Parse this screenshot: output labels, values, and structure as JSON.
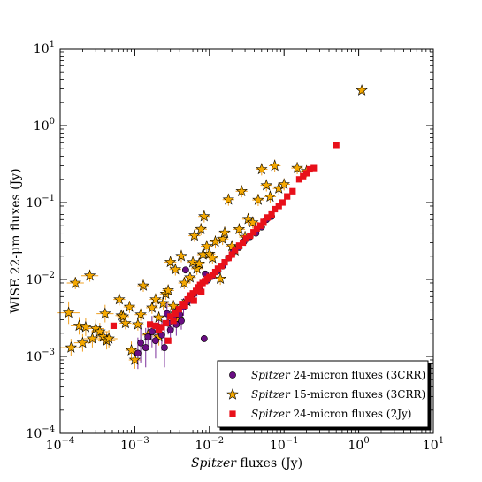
{
  "chart_data": {
    "type": "scatter",
    "xscale": "log",
    "yscale": "log",
    "xlim": [
      0.0001,
      10
    ],
    "ylim": [
      0.0001,
      10
    ],
    "xlabel": "Spitzer fluxes (Jy)",
    "xlabel_italic": "Spitzer",
    "xlabel_rest": " fluxes (Jy)",
    "ylabel": "WISE 22-μm fluxes (Jy)",
    "xticks": [
      {
        "value": 0.0001,
        "base": "10",
        "exp": "−4"
      },
      {
        "value": 0.001,
        "base": "10",
        "exp": "−3"
      },
      {
        "value": 0.01,
        "base": "10",
        "exp": "−2"
      },
      {
        "value": 0.1,
        "base": "10",
        "exp": "−1"
      },
      {
        "value": 1,
        "base": "10",
        "exp": "0"
      },
      {
        "value": 10,
        "base": "10",
        "exp": "1"
      }
    ],
    "yticks": [
      {
        "value": 0.0001,
        "base": "10",
        "exp": "−4"
      },
      {
        "value": 0.001,
        "base": "10",
        "exp": "−3"
      },
      {
        "value": 0.01,
        "base": "10",
        "exp": "−2"
      },
      {
        "value": 0.1,
        "base": "10",
        "exp": "−1"
      },
      {
        "value": 1,
        "base": "10",
        "exp": "0"
      },
      {
        "value": 10,
        "base": "10",
        "exp": "1"
      }
    ],
    "grid": false,
    "legend_position": "bottom-right",
    "series": [
      {
        "name": "Spitzer 24-micron fluxes (3CRR)",
        "name_italic": "Spitzer",
        "name_rest": " 24-micron fluxes (3CRR)",
        "marker": "circle",
        "color": "#6a0d83",
        "errcolor": "#7b2f9b",
        "points": [
          {
            "x": 0.0012,
            "y": 0.0015,
            "ye": 1.8
          },
          {
            "x": 0.0014,
            "y": 0.0013,
            "ye": 1.8
          },
          {
            "x": 0.0015,
            "y": 0.0018,
            "ye": 1.5
          },
          {
            "x": 0.0017,
            "y": 0.0021,
            "ye": 1.6
          },
          {
            "x": 0.0019,
            "y": 0.0016,
            "ye": 1.7
          },
          {
            "x": 0.0021,
            "y": 0.0024,
            "ye": 1.5
          },
          {
            "x": 0.0023,
            "y": 0.0019,
            "ye": 1.6
          },
          {
            "x": 0.0025,
            "y": 0.0013,
            "ye": 1.8
          },
          {
            "x": 0.0028,
            "y": 0.0027,
            "ye": 1.4
          },
          {
            "x": 0.003,
            "y": 0.0022,
            "ye": 1.5
          },
          {
            "x": 0.0033,
            "y": 0.0031,
            "ye": 1.4
          },
          {
            "x": 0.0036,
            "y": 0.0026,
            "ye": 1.4
          },
          {
            "x": 0.004,
            "y": 0.0035,
            "ye": 1.3
          },
          {
            "x": 0.0045,
            "y": 0.0044,
            "ye": 1.3
          },
          {
            "x": 0.005,
            "y": 0.0051,
            "ye": 1.25
          },
          {
            "x": 0.0056,
            "y": 0.0058,
            "ye": 1.2
          },
          {
            "x": 0.0062,
            "y": 0.0065,
            "ye": 1.2
          },
          {
            "x": 0.0068,
            "y": 0.0072,
            "ye": 1.2
          },
          {
            "x": 0.0075,
            "y": 0.0081,
            "ye": 1.15
          },
          {
            "x": 0.0085,
            "y": 0.0017,
            "ye": 1.1
          },
          {
            "x": 0.0095,
            "y": 0.0098,
            "ye": 1.1
          },
          {
            "x": 0.011,
            "y": 0.011,
            "ye": 1.1
          },
          {
            "x": 0.013,
            "y": 0.013,
            "ye": 1.1
          },
          {
            "x": 0.015,
            "y": 0.015,
            "ye": 1.1
          },
          {
            "x": 0.018,
            "y": 0.019,
            "ye": 1.1
          },
          {
            "x": 0.021,
            "y": 0.023,
            "ye": 1.1
          },
          {
            "x": 0.025,
            "y": 0.026,
            "ye": 1.1
          },
          {
            "x": 0.029,
            "y": 0.031,
            "ye": 1.1
          },
          {
            "x": 0.035,
            "y": 0.036,
            "ye": 1.1
          },
          {
            "x": 0.042,
            "y": 0.04,
            "ye": 1.1
          },
          {
            "x": 0.05,
            "y": 0.048,
            "ye": 1.1
          },
          {
            "x": 0.058,
            "y": 0.06,
            "ye": 1.1
          },
          {
            "x": 0.068,
            "y": 0.066,
            "ye": 1.1
          },
          {
            "x": 0.0048,
            "y": 0.0133,
            "ye": 1.1
          },
          {
            "x": 0.0088,
            "y": 0.0118,
            "ye": 1.1
          },
          {
            "x": 0.0011,
            "y": 0.0011,
            "ye": 1.6
          },
          {
            "x": 0.0027,
            "y": 0.0036,
            "ye": 1.4
          },
          {
            "x": 0.0042,
            "y": 0.0029,
            "ye": 1.3
          }
        ]
      },
      {
        "name": "Spitzer 15-micron fluxes (3CRR)",
        "name_italic": "Spitzer",
        "name_rest": " 15-micron fluxes (3CRR)",
        "marker": "star",
        "color": "#f5a800",
        "errcolor": "#f0a020",
        "points": [
          {
            "x": 0.00013,
            "y": 0.0037,
            "xe": 1.4,
            "ye": 1.4
          },
          {
            "x": 0.00014,
            "y": 0.0013,
            "xe": 1.4,
            "ye": 1.3
          },
          {
            "x": 0.00016,
            "y": 0.009,
            "xe": 1.3,
            "ye": 1.2
          },
          {
            "x": 0.00018,
            "y": 0.0025,
            "xe": 1.3,
            "ye": 1.3
          },
          {
            "x": 0.0002,
            "y": 0.0015,
            "xe": 1.3,
            "ye": 1.3
          },
          {
            "x": 0.00022,
            "y": 0.0024,
            "xe": 1.3,
            "ye": 1.3
          },
          {
            "x": 0.00025,
            "y": 0.0112,
            "xe": 1.3,
            "ye": 1.2
          },
          {
            "x": 0.00027,
            "y": 0.0017,
            "xe": 1.3,
            "ye": 1.3
          },
          {
            "x": 0.0003,
            "y": 0.0023,
            "xe": 1.3,
            "ye": 1.3
          },
          {
            "x": 0.00034,
            "y": 0.0021,
            "xe": 1.3,
            "ye": 1.3
          },
          {
            "x": 0.00038,
            "y": 0.0018,
            "xe": 1.3,
            "ye": 1.3
          },
          {
            "x": 0.0004,
            "y": 0.0036,
            "xe": 1.3,
            "ye": 1.3
          },
          {
            "x": 0.00042,
            "y": 0.0016,
            "xe": 1.3,
            "ye": 1.3
          },
          {
            "x": 0.00045,
            "y": 0.0017,
            "xe": 1.3,
            "ye": 1.3
          },
          {
            "x": 0.00062,
            "y": 0.0055,
            "xe": 1.2,
            "ye": 1.2
          },
          {
            "x": 0.00066,
            "y": 0.0034,
            "xe": 1.2,
            "ye": 1.2
          },
          {
            "x": 0.0007,
            "y": 0.0033,
            "xe": 1.2,
            "ye": 1.2
          },
          {
            "x": 0.00075,
            "y": 0.0027,
            "xe": 1.2,
            "ye": 1.2
          },
          {
            "x": 0.00085,
            "y": 0.0044,
            "xe": 1.2,
            "ye": 1.2
          },
          {
            "x": 0.001,
            "y": 0.0009,
            "xe": 1.2,
            "ye": 1.3
          },
          {
            "x": 0.0011,
            "y": 0.0026,
            "xe": 1.2,
            "ye": 1.2
          },
          {
            "x": 0.0012,
            "y": 0.0035,
            "xe": 1.2,
            "ye": 1.2
          },
          {
            "x": 0.0013,
            "y": 0.0083,
            "xe": 1.2,
            "ye": 1.2
          },
          {
            "x": 0.0015,
            "y": 0.0019,
            "xe": 1.2,
            "ye": 1.2
          },
          {
            "x": 0.0017,
            "y": 0.0043,
            "xe": 1.2,
            "ye": 1.2
          },
          {
            "x": 0.0019,
            "y": 0.0055,
            "xe": 1.2,
            "ye": 1.2
          },
          {
            "x": 0.0021,
            "y": 0.0032,
            "xe": 1.2,
            "ye": 1.2
          },
          {
            "x": 0.0024,
            "y": 0.0049,
            "xe": 1.2,
            "ye": 1.2
          },
          {
            "x": 0.0026,
            "y": 0.0065,
            "xe": 1.2,
            "ye": 1.2
          },
          {
            "x": 0.0028,
            "y": 0.0072,
            "xe": 1.2,
            "ye": 1.2
          },
          {
            "x": 0.003,
            "y": 0.0168,
            "xe": 1.2,
            "ye": 1.2
          },
          {
            "x": 0.0033,
            "y": 0.0045,
            "xe": 1.2,
            "ye": 1.2
          },
          {
            "x": 0.0035,
            "y": 0.0135,
            "xe": 1.2,
            "ye": 1.2
          },
          {
            "x": 0.0038,
            "y": 0.0031,
            "xe": 1.2,
            "ye": 1.2
          },
          {
            "x": 0.0042,
            "y": 0.0201,
            "xe": 1.2,
            "ye": 1.2
          },
          {
            "x": 0.0046,
            "y": 0.009,
            "xe": 1.2,
            "ye": 1.2
          },
          {
            "x": 0.005,
            "y": 0.0052,
            "xe": 1.2,
            "ye": 1.2
          },
          {
            "x": 0.0055,
            "y": 0.0106,
            "xe": 1.2,
            "ye": 1.2
          },
          {
            "x": 0.006,
            "y": 0.0167,
            "xe": 1.2,
            "ye": 1.2
          },
          {
            "x": 0.0063,
            "y": 0.037,
            "xe": 1.2,
            "ye": 1.2
          },
          {
            "x": 0.0068,
            "y": 0.0138,
            "xe": 1.2,
            "ye": 1.2
          },
          {
            "x": 0.0073,
            "y": 0.016,
            "xe": 1.2,
            "ye": 1.2
          },
          {
            "x": 0.0077,
            "y": 0.045,
            "xe": 1.2,
            "ye": 1.2
          },
          {
            "x": 0.0082,
            "y": 0.021,
            "xe": 1.2,
            "ye": 1.2
          },
          {
            "x": 0.0085,
            "y": 0.066,
            "xe": 1.2,
            "ye": 1.2
          },
          {
            "x": 0.0092,
            "y": 0.027,
            "xe": 1.2,
            "ye": 1.2
          },
          {
            "x": 0.01,
            "y": 0.0214,
            "xe": 1.2,
            "ye": 1.2
          },
          {
            "x": 0.011,
            "y": 0.019,
            "xe": 1.2,
            "ye": 1.2
          },
          {
            "x": 0.012,
            "y": 0.031,
            "xe": 1.2,
            "ye": 1.2
          },
          {
            "x": 0.014,
            "y": 0.0102,
            "xe": 1.2,
            "ye": 1.2
          },
          {
            "x": 0.015,
            "y": 0.0336,
            "xe": 1.2,
            "ye": 1.2
          },
          {
            "x": 0.016,
            "y": 0.0405,
            "xe": 1.2,
            "ye": 1.2
          },
          {
            "x": 0.018,
            "y": 0.109,
            "xe": 1.2,
            "ye": 1.2
          },
          {
            "x": 0.02,
            "y": 0.027,
            "xe": 1.2,
            "ye": 1.2
          },
          {
            "x": 0.022,
            "y": 0.0238,
            "xe": 1.2,
            "ye": 1.2
          },
          {
            "x": 0.025,
            "y": 0.0448,
            "xe": 1.2,
            "ye": 1.2
          },
          {
            "x": 0.027,
            "y": 0.14,
            "xe": 1.2,
            "ye": 1.2
          },
          {
            "x": 0.03,
            "y": 0.0356,
            "xe": 1.2,
            "ye": 1.2
          },
          {
            "x": 0.033,
            "y": 0.0608,
            "xe": 1.2,
            "ye": 1.2
          },
          {
            "x": 0.038,
            "y": 0.055,
            "xe": 1.2,
            "ye": 1.2
          },
          {
            "x": 0.045,
            "y": 0.108,
            "xe": 1.2,
            "ye": 1.2
          },
          {
            "x": 0.05,
            "y": 0.27,
            "xe": 1.2,
            "ye": 1.2
          },
          {
            "x": 0.058,
            "y": 0.167,
            "xe": 1.2,
            "ye": 1.2
          },
          {
            "x": 0.065,
            "y": 0.119,
            "xe": 1.2,
            "ye": 1.2
          },
          {
            "x": 0.075,
            "y": 0.3,
            "xe": 1.2,
            "ye": 1.2
          },
          {
            "x": 0.085,
            "y": 0.152,
            "xe": 1.2,
            "ye": 1.2
          },
          {
            "x": 0.1,
            "y": 0.172,
            "xe": 1.2,
            "ye": 1.2
          },
          {
            "x": 0.15,
            "y": 0.28,
            "xe": 1.2,
            "ye": 1.2
          },
          {
            "x": 0.2,
            "y": 0.255,
            "xe": 1.2,
            "ye": 1.2
          },
          {
            "x": 1.1,
            "y": 2.87,
            "xe": 1.1,
            "ye": 1.1
          },
          {
            "x": 0.0035,
            "y": 0.0036,
            "xe": 1.2,
            "ye": 1.3
          },
          {
            "x": 0.0021,
            "y": 0.0018,
            "xe": 1.2,
            "ye": 1.3
          },
          {
            "x": 0.0009,
            "y": 0.0012,
            "xe": 1.2,
            "ye": 1.3
          }
        ]
      },
      {
        "name": "Spitzer 24-micron fluxes (2Jy)",
        "name_italic": "Spitzer",
        "name_rest": " 24-micron fluxes (2Jy)",
        "marker": "square",
        "color": "#e8101a",
        "errcolor": "#e8101a",
        "points": [
          {
            "x": 0.00052,
            "y": 0.0025
          },
          {
            "x": 0.0016,
            "y": 0.0026
          },
          {
            "x": 0.0019,
            "y": 0.0025
          },
          {
            "x": 0.0021,
            "y": 0.0022
          },
          {
            "x": 0.0023,
            "y": 0.0024
          },
          {
            "x": 0.0026,
            "y": 0.0027
          },
          {
            "x": 0.003,
            "y": 0.0033
          },
          {
            "x": 0.0035,
            "y": 0.0036
          },
          {
            "x": 0.0039,
            "y": 0.0041
          },
          {
            "x": 0.0043,
            "y": 0.0048
          },
          {
            "x": 0.0047,
            "y": 0.0046
          },
          {
            "x": 0.0051,
            "y": 0.0055
          },
          {
            "x": 0.0056,
            "y": 0.0062
          },
          {
            "x": 0.006,
            "y": 0.0066
          },
          {
            "x": 0.0066,
            "y": 0.0071
          },
          {
            "x": 0.0071,
            "y": 0.0079
          },
          {
            "x": 0.0075,
            "y": 0.0085
          },
          {
            "x": 0.0081,
            "y": 0.009
          },
          {
            "x": 0.0087,
            "y": 0.0095
          },
          {
            "x": 0.0093,
            "y": 0.0102
          },
          {
            "x": 0.01,
            "y": 0.0108
          },
          {
            "x": 0.011,
            "y": 0.0115
          },
          {
            "x": 0.012,
            "y": 0.0125
          },
          {
            "x": 0.013,
            "y": 0.0138
          },
          {
            "x": 0.0145,
            "y": 0.015
          },
          {
            "x": 0.016,
            "y": 0.0167
          },
          {
            "x": 0.018,
            "y": 0.019
          },
          {
            "x": 0.02,
            "y": 0.021
          },
          {
            "x": 0.022,
            "y": 0.024
          },
          {
            "x": 0.025,
            "y": 0.0275
          },
          {
            "x": 0.028,
            "y": 0.03
          },
          {
            "x": 0.031,
            "y": 0.034
          },
          {
            "x": 0.035,
            "y": 0.037
          },
          {
            "x": 0.039,
            "y": 0.041
          },
          {
            "x": 0.043,
            "y": 0.046
          },
          {
            "x": 0.048,
            "y": 0.05
          },
          {
            "x": 0.053,
            "y": 0.056
          },
          {
            "x": 0.06,
            "y": 0.064
          },
          {
            "x": 0.068,
            "y": 0.07
          },
          {
            "x": 0.075,
            "y": 0.082
          },
          {
            "x": 0.085,
            "y": 0.09
          },
          {
            "x": 0.095,
            "y": 0.1
          },
          {
            "x": 0.11,
            "y": 0.12
          },
          {
            "x": 0.13,
            "y": 0.14
          },
          {
            "x": 0.16,
            "y": 0.2
          },
          {
            "x": 0.18,
            "y": 0.22
          },
          {
            "x": 0.2,
            "y": 0.24
          },
          {
            "x": 0.22,
            "y": 0.27
          },
          {
            "x": 0.25,
            "y": 0.28
          },
          {
            "x": 0.5,
            "y": 0.56
          },
          {
            "x": 0.0028,
            "y": 0.0016
          },
          {
            "x": 0.0033,
            "y": 0.0029
          },
          {
            "x": 0.0062,
            "y": 0.0053
          },
          {
            "x": 0.0078,
            "y": 0.0069
          }
        ]
      }
    ]
  }
}
